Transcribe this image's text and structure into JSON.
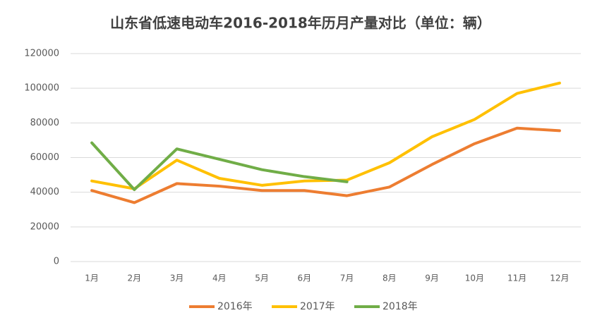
{
  "chart_data": {
    "type": "line",
    "title": "山东省低速电动车2016-2018年历月产量对比（单位：辆）",
    "categories": [
      "1月",
      "2月",
      "3月",
      "4月",
      "5月",
      "6月",
      "7月",
      "8月",
      "9月",
      "10月",
      "11月",
      "12月"
    ],
    "series": [
      {
        "name": "2016年",
        "color": "#ed7d31",
        "values": [
          41000,
          34000,
          45000,
          43500,
          41000,
          41000,
          38000,
          43000,
          56000,
          68000,
          77000,
          75500
        ]
      },
      {
        "name": "2017年",
        "color": "#ffc000",
        "values": [
          46500,
          42000,
          58500,
          48000,
          44000,
          46500,
          47000,
          57000,
          72000,
          82000,
          97000,
          103000
        ]
      },
      {
        "name": "2018年",
        "color": "#70ad47",
        "values": [
          68500,
          41500,
          65000,
          59000,
          53000,
          49000,
          46000,
          null,
          null,
          null,
          null,
          null
        ]
      }
    ],
    "ylim": [
      0,
      120000
    ],
    "yticks": [
      0,
      20000,
      40000,
      60000,
      80000,
      100000,
      120000
    ],
    "grid": true,
    "legend": "bottom"
  }
}
